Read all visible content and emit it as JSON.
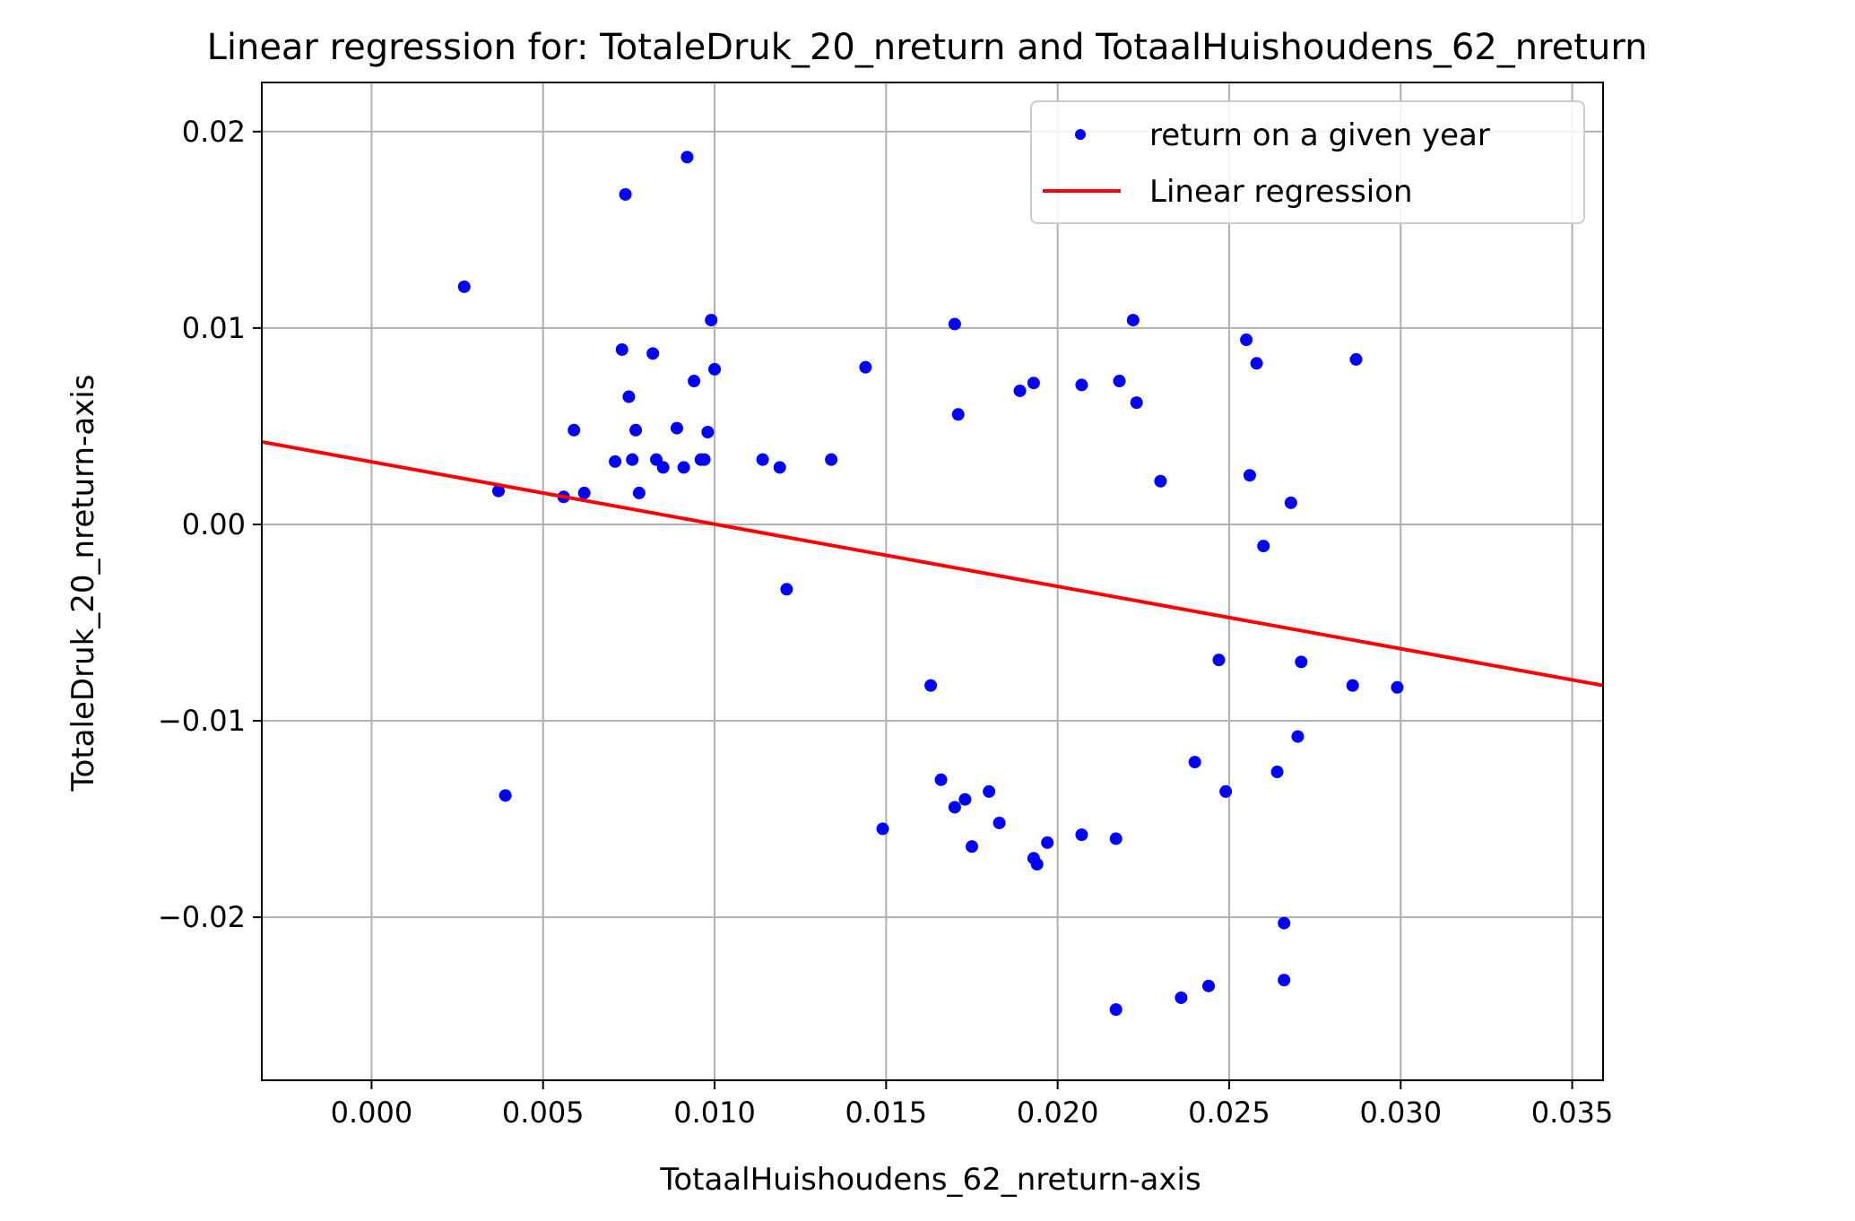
{
  "chart_data": {
    "type": "scatter",
    "title": "Linear regression for: TotaleDruk_20_nreturn and TotaalHuishoudens_62_nreturn",
    "xlabel": "TotaalHuishoudens_62_nreturn-axis",
    "ylabel": "TotaleDruk_20_nreturn-axis",
    "xlim": [
      -0.0032,
      0.0359
    ],
    "ylim": [
      -0.0283,
      0.0225
    ],
    "xticks": [
      0.0,
      0.005,
      0.01,
      0.015,
      0.02,
      0.025,
      0.03,
      0.035
    ],
    "xtick_labels": [
      "0.000",
      "0.005",
      "0.010",
      "0.015",
      "0.020",
      "0.025",
      "0.030",
      "0.035"
    ],
    "yticks": [
      -0.02,
      -0.01,
      0.0,
      0.01,
      0.02
    ],
    "ytick_labels": [
      "−0.02",
      "−0.01",
      "0.00",
      "0.01",
      "0.02"
    ],
    "grid": true,
    "legend_position": "top-right",
    "colors": {
      "points": "#0000ff",
      "regression": "#ff0000",
      "grid": "#b0b0b0"
    },
    "series": [
      {
        "name": "return on a given year",
        "type": "scatter",
        "points": [
          [
            0.0027,
            0.0121
          ],
          [
            0.0037,
            0.0017
          ],
          [
            0.0039,
            -0.0138
          ],
          [
            0.0056,
            0.0014
          ],
          [
            0.0059,
            0.0048
          ],
          [
            0.0062,
            0.0016
          ],
          [
            0.0071,
            0.0032
          ],
          [
            0.0073,
            0.0089
          ],
          [
            0.0074,
            0.0168
          ],
          [
            0.0075,
            0.0065
          ],
          [
            0.0076,
            0.0033
          ],
          [
            0.0077,
            0.0048
          ],
          [
            0.0078,
            0.0016
          ],
          [
            0.0082,
            0.0087
          ],
          [
            0.0083,
            0.0033
          ],
          [
            0.0085,
            0.0029
          ],
          [
            0.0089,
            0.0049
          ],
          [
            0.0091,
            0.0029
          ],
          [
            0.0092,
            0.0187
          ],
          [
            0.0094,
            0.0073
          ],
          [
            0.0096,
            0.0033
          ],
          [
            0.0097,
            0.0033
          ],
          [
            0.0098,
            0.0047
          ],
          [
            0.0099,
            0.0104
          ],
          [
            0.01,
            0.0079
          ],
          [
            0.0114,
            0.0033
          ],
          [
            0.0119,
            0.0029
          ],
          [
            0.0121,
            -0.0033
          ],
          [
            0.0134,
            0.0033
          ],
          [
            0.0144,
            0.008
          ],
          [
            0.0149,
            -0.0155
          ],
          [
            0.0163,
            -0.0082
          ],
          [
            0.0166,
            -0.013
          ],
          [
            0.017,
            0.0102
          ],
          [
            0.017,
            -0.0144
          ],
          [
            0.0171,
            0.0056
          ],
          [
            0.0173,
            -0.014
          ],
          [
            0.0175,
            -0.0164
          ],
          [
            0.018,
            -0.0136
          ],
          [
            0.0183,
            -0.0152
          ],
          [
            0.0189,
            0.0068
          ],
          [
            0.0193,
            0.0072
          ],
          [
            0.0193,
            -0.017
          ],
          [
            0.0194,
            -0.0173
          ],
          [
            0.0197,
            -0.0162
          ],
          [
            0.0207,
            0.0071
          ],
          [
            0.0207,
            -0.0158
          ],
          [
            0.0217,
            -0.016
          ],
          [
            0.0217,
            -0.0247
          ],
          [
            0.0218,
            0.0073
          ],
          [
            0.0222,
            0.0104
          ],
          [
            0.0223,
            0.0062
          ],
          [
            0.023,
            0.0022
          ],
          [
            0.0236,
            -0.0241
          ],
          [
            0.024,
            -0.0121
          ],
          [
            0.0244,
            -0.0235
          ],
          [
            0.0247,
            -0.0069
          ],
          [
            0.0249,
            -0.0136
          ],
          [
            0.0255,
            0.0094
          ],
          [
            0.0256,
            0.0025
          ],
          [
            0.0258,
            0.0082
          ],
          [
            0.026,
            -0.0011
          ],
          [
            0.0264,
            -0.0126
          ],
          [
            0.0266,
            -0.0203
          ],
          [
            0.0266,
            -0.0232
          ],
          [
            0.0268,
            0.0011
          ],
          [
            0.027,
            -0.0108
          ],
          [
            0.0271,
            -0.007
          ],
          [
            0.0286,
            -0.0082
          ],
          [
            0.0287,
            0.0084
          ],
          [
            0.0299,
            -0.0083
          ]
        ]
      },
      {
        "name": "Linear regression",
        "type": "line",
        "points": [
          [
            -0.0032,
            0.0042
          ],
          [
            0.0359,
            -0.0082
          ]
        ]
      }
    ]
  }
}
